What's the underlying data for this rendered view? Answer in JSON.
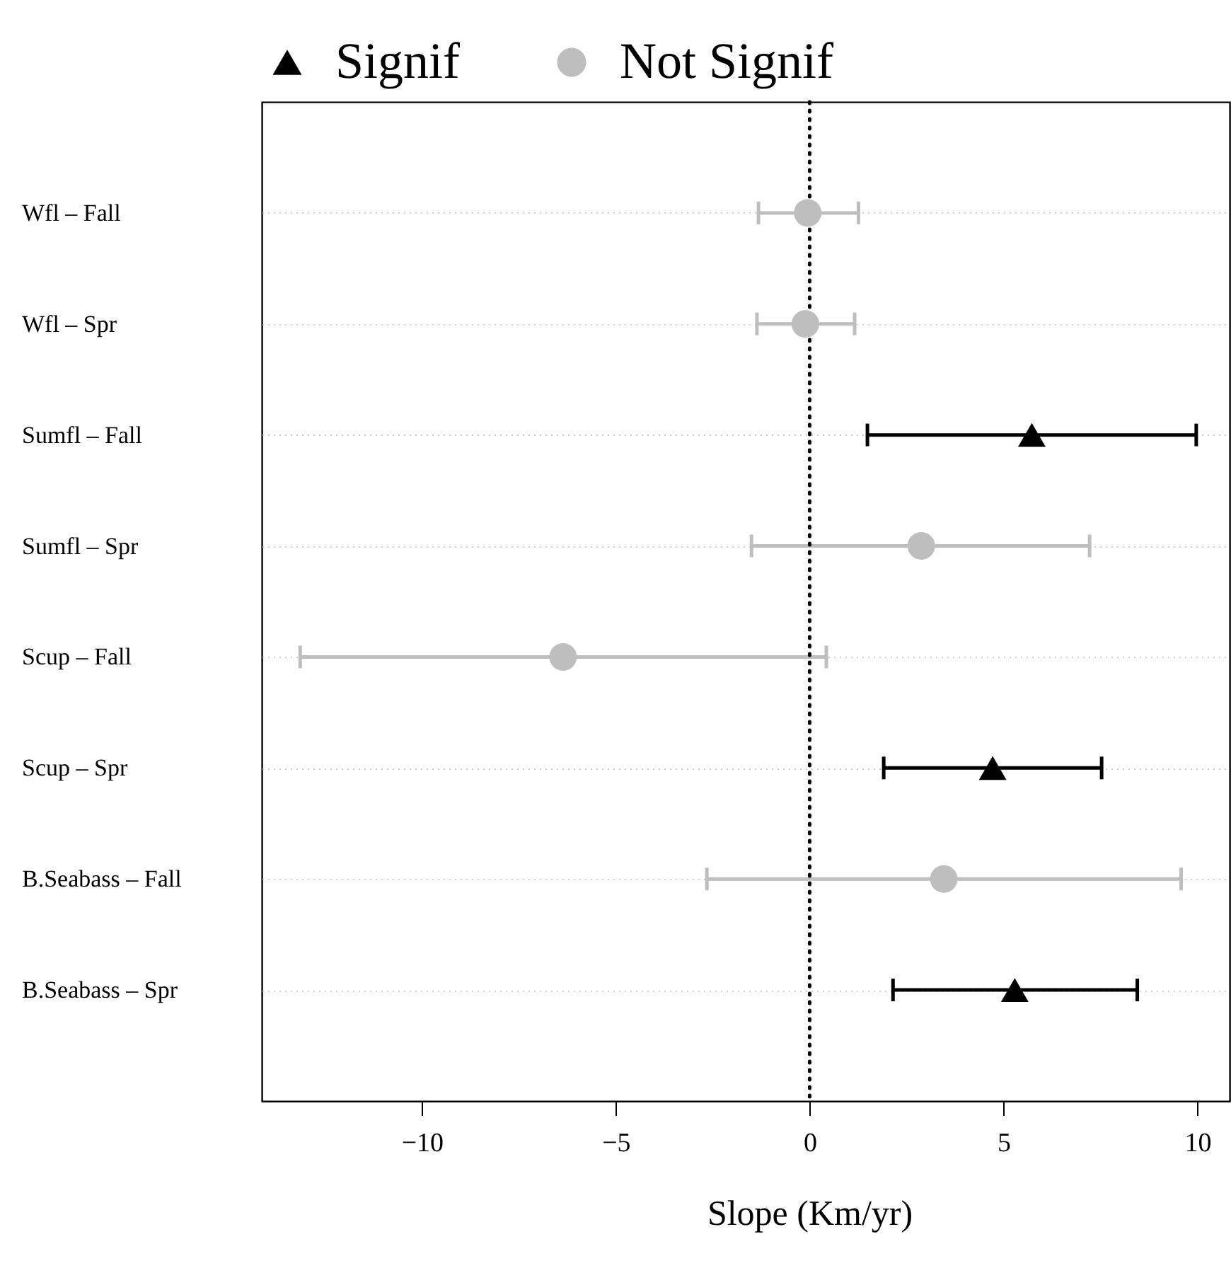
{
  "chart_data": {
    "type": "scatter",
    "orientation": "horizontal",
    "xlabel": "Slope (Km/yr)",
    "categories": [
      "Wfl – Fall",
      "Wfl – Spr",
      "Sumfl – Fall",
      "Sumfl – Spr",
      "Scup – Fall",
      "Scup – Spr",
      "B.Seabass – Fall",
      "B.Seabass – Spr"
    ],
    "series": [
      {
        "name": "Signif",
        "color": "#000000",
        "marker": "triangle",
        "values": [
          null,
          null,
          5.73,
          null,
          null,
          4.72,
          null,
          5.29
        ],
        "errors": [
          null,
          null,
          [
            1.49,
            9.97
          ],
          null,
          null,
          [
            1.91,
            7.53
          ],
          null,
          [
            2.15,
            8.45
          ]
        ]
      },
      {
        "name": "Not Signif",
        "color": "#bebebe",
        "marker": "circle",
        "values": [
          -0.05,
          -0.11,
          null,
          2.88,
          -6.36,
          null,
          3.46,
          null
        ],
        "errors": [
          [
            -1.32,
            1.26
          ],
          [
            -1.36,
            1.16
          ],
          null,
          [
            -1.5,
            7.22
          ],
          [
            -13.14,
            0.43
          ],
          null,
          [
            -2.65,
            9.58
          ],
          null
        ]
      }
    ],
    "xlim": [
      -14.13,
      10.83
    ],
    "xticks": [
      -10,
      -5,
      0,
      5,
      10
    ],
    "ref_lines": [
      {
        "axis": "x",
        "value": 0,
        "line_style": "dotted"
      }
    ],
    "grid": "y",
    "legend": "top"
  }
}
